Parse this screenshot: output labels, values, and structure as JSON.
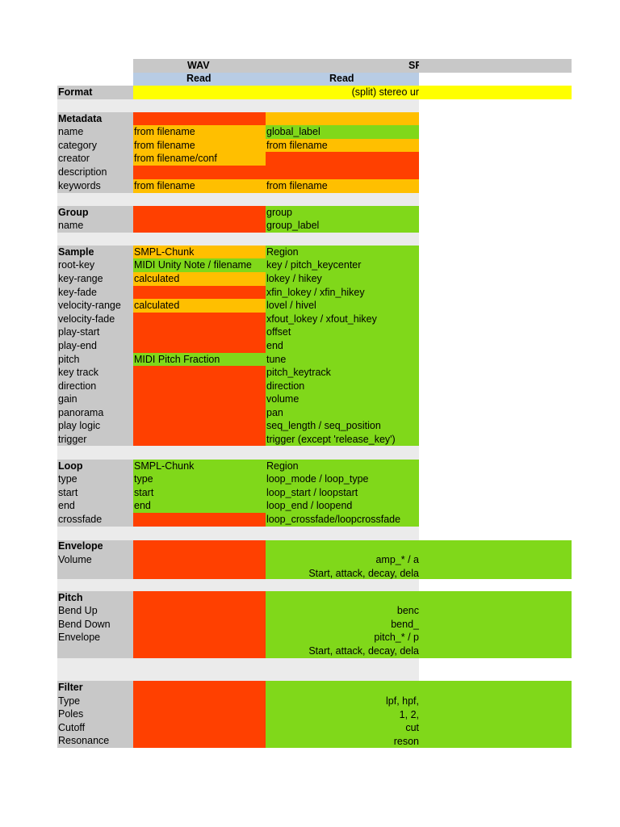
{
  "header": {
    "wav": "WAV",
    "sfz": "SF",
    "read_wav": "Read",
    "read_sfz": "Read"
  },
  "format": {
    "label": "Format",
    "value": "(split) stereo ur"
  },
  "metadata": {
    "title": "Metadata",
    "rows": [
      {
        "label": "name",
        "wav": "from filename",
        "sfz": "global_label"
      },
      {
        "label": "category",
        "wav": "from filename",
        "sfz": "from filename"
      },
      {
        "label": "creator",
        "wav": "from filename/conf",
        "sfz": ""
      },
      {
        "label": "description",
        "wav": "",
        "sfz": ""
      },
      {
        "label": "keywords",
        "wav": "from filename",
        "sfz": "from filename"
      }
    ]
  },
  "group": {
    "title": "Group",
    "sfz_title": "group",
    "rows": [
      {
        "label": "name",
        "wav": "",
        "sfz": "group_label"
      }
    ]
  },
  "sample": {
    "title": "Sample",
    "wav_title": "SMPL-Chunk",
    "sfz_title": "Region",
    "rows": [
      {
        "label": "root-key",
        "wav": "MIDI Unity Note / filename",
        "sfz": "key / pitch_keycenter"
      },
      {
        "label": "key-range",
        "wav": "calculated",
        "sfz": "lokey / hikey"
      },
      {
        "label": "key-fade",
        "wav": "",
        "sfz": "xfin_lokey / xfin_hikey"
      },
      {
        "label": "velocity-range",
        "wav": "calculated",
        "sfz": "lovel / hivel"
      },
      {
        "label": "velocity-fade",
        "wav": "",
        "sfz": "xfout_lokey / xfout_hikey"
      },
      {
        "label": "play-start",
        "wav": "",
        "sfz": "offset"
      },
      {
        "label": "play-end",
        "wav": "",
        "sfz": "end"
      },
      {
        "label": "pitch",
        "wav": "MIDI Pitch Fraction",
        "sfz": "tune"
      },
      {
        "label": "key track",
        "wav": "",
        "sfz": "pitch_keytrack"
      },
      {
        "label": "direction",
        "wav": "",
        "sfz": "direction"
      },
      {
        "label": "gain",
        "wav": "",
        "sfz": "volume"
      },
      {
        "label": "panorama",
        "wav": "",
        "sfz": "pan"
      },
      {
        "label": "play logic",
        "wav": "",
        "sfz": "seq_length / seq_position"
      },
      {
        "label": "trigger",
        "wav": "",
        "sfz": "trigger (except 'release_key')"
      }
    ]
  },
  "loop": {
    "title": "Loop",
    "wav_title": "SMPL-Chunk",
    "sfz_title": "Region",
    "rows": [
      {
        "label": "type",
        "wav": "type",
        "sfz": "loop_mode / loop_type"
      },
      {
        "label": "start",
        "wav": "start",
        "sfz": "loop_start / loopstart"
      },
      {
        "label": "end",
        "wav": "end",
        "sfz": "loop_end / loopend"
      },
      {
        "label": "crossfade",
        "wav": "",
        "sfz": "loop_crossfade/loopcrossfade"
      }
    ]
  },
  "envelope": {
    "title": "Envelope",
    "label1": "Volume",
    "line1": "amp_* / a",
    "line2": "Start, attack, decay, dela"
  },
  "pitch": {
    "title": "Pitch",
    "labels": [
      "Bend Up",
      "Bend Down",
      "Envelope"
    ],
    "lines": [
      "benc",
      "bend_",
      "pitch_* / p",
      "Start, attack, decay, dela"
    ]
  },
  "filter": {
    "title": "Filter",
    "labels": [
      "Type",
      "Poles",
      "Cutoff",
      "Resonance"
    ],
    "lines": [
      "lpf, hpf,",
      "1, 2,",
      "cut",
      "reson"
    ]
  }
}
